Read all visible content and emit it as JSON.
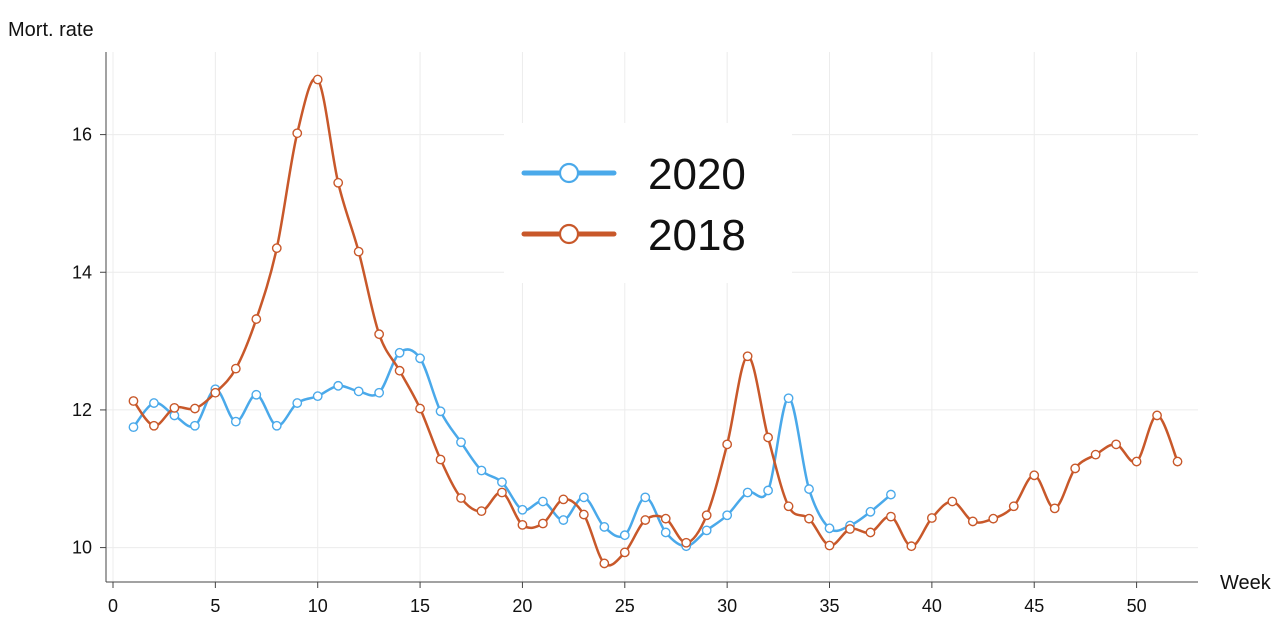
{
  "chart_data": {
    "type": "line",
    "title": "",
    "xlabel": "Week",
    "ylabel": "Mort. rate",
    "xlim": [
      0,
      53
    ],
    "ylim": [
      9.5,
      17.2
    ],
    "x_ticks": [
      0,
      5,
      10,
      15,
      20,
      25,
      30,
      35,
      40,
      45,
      50
    ],
    "y_ticks": [
      10,
      12,
      14,
      16
    ],
    "grid": true,
    "legend_position": "top-center",
    "series": [
      {
        "name": "2020",
        "color": "#4aa9ea",
        "x": [
          1,
          2,
          3,
          4,
          5,
          6,
          7,
          8,
          9,
          10,
          11,
          12,
          13,
          14,
          15,
          16,
          17,
          18,
          19,
          20,
          21,
          22,
          23,
          24,
          25,
          26,
          27,
          28,
          29,
          30,
          31,
          32,
          33,
          34,
          35,
          36,
          37,
          38
        ],
        "y": [
          11.75,
          12.1,
          11.92,
          11.77,
          12.3,
          11.83,
          12.22,
          11.77,
          12.1,
          12.2,
          12.35,
          12.27,
          12.25,
          12.83,
          12.75,
          11.98,
          11.53,
          11.12,
          10.95,
          10.55,
          10.67,
          10.4,
          10.73,
          10.3,
          10.18,
          10.73,
          10.22,
          10.02,
          10.25,
          10.47,
          10.8,
          10.83,
          12.17,
          10.85,
          10.28,
          10.32,
          10.52,
          10.77
        ]
      },
      {
        "name": "2018",
        "color": "#c8582a",
        "x": [
          1,
          2,
          3,
          4,
          5,
          6,
          7,
          8,
          9,
          10,
          11,
          12,
          13,
          14,
          15,
          16,
          17,
          18,
          19,
          20,
          21,
          22,
          23,
          24,
          25,
          26,
          27,
          28,
          29,
          30,
          31,
          32,
          33,
          34,
          35,
          36,
          37,
          38,
          39,
          40,
          41,
          42,
          43,
          44,
          45,
          46,
          47,
          48,
          49,
          50,
          51,
          52
        ],
        "y": [
          12.13,
          11.77,
          12.03,
          12.02,
          12.25,
          12.6,
          13.32,
          14.35,
          16.02,
          16.8,
          15.3,
          14.3,
          13.1,
          12.57,
          12.02,
          11.28,
          10.72,
          10.53,
          10.8,
          10.33,
          10.35,
          10.7,
          10.48,
          9.77,
          9.93,
          10.4,
          10.42,
          10.07,
          10.47,
          11.5,
          12.78,
          11.6,
          10.6,
          10.42,
          10.03,
          10.27,
          10.22,
          10.45,
          10.02,
          10.43,
          10.67,
          10.38,
          10.42,
          10.6,
          11.05,
          10.57,
          11.15,
          11.35,
          11.5,
          11.25,
          11.92,
          11.25
        ]
      }
    ]
  }
}
